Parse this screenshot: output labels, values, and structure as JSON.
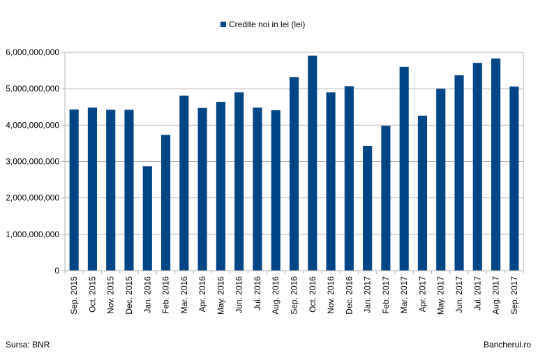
{
  "chart_data": {
    "type": "bar",
    "legend": {
      "label": "Credite noi in lei (lei)",
      "position": "top",
      "color": "#004586"
    },
    "categories": [
      "Sep. 2015",
      "Oct. 2015",
      "Nov. 2015",
      "Dec. 2015",
      "Jan. 2016",
      "Feb. 2016",
      "Mar. 2016",
      "Apr. 2016",
      "May. 2016",
      "Jun. 2016",
      "Jul. 2016",
      "Aug. 2016",
      "Sep. 2016",
      "Oct. 2016",
      "Nov. 2016",
      "Dec. 2016",
      "Jan. 2017",
      "Feb. 2017",
      "Mar. 2017",
      "Apr. 2017",
      "May. 2017",
      "Jun. 2017",
      "Jul. 2017",
      "Aug. 2017",
      "Sep. 2017"
    ],
    "series": [
      {
        "name": "Credite noi in lei (lei)",
        "values": [
          4430000000,
          4480000000,
          4420000000,
          4420000000,
          2870000000,
          3730000000,
          4810000000,
          4470000000,
          4640000000,
          4900000000,
          4480000000,
          4410000000,
          5320000000,
          5910000000,
          4900000000,
          5070000000,
          3430000000,
          3980000000,
          5600000000,
          4260000000,
          5000000000,
          5370000000,
          5710000000,
          5830000000,
          5060000000
        ]
      }
    ],
    "ylim": [
      0,
      6000000000
    ],
    "yticks": [
      0,
      1000000000,
      2000000000,
      3000000000,
      4000000000,
      5000000000,
      6000000000
    ],
    "ytick_labels": [
      "0",
      "1,000,000,000",
      "2,000,000,000",
      "3,000,000,000",
      "4,000,000,000",
      "5,000,000,000",
      "6,000,000,000"
    ],
    "grid": true,
    "xlabel": "",
    "ylabel": ""
  },
  "footer": {
    "source": "Sursa: BNR",
    "brand": "Bancherul.ro"
  }
}
